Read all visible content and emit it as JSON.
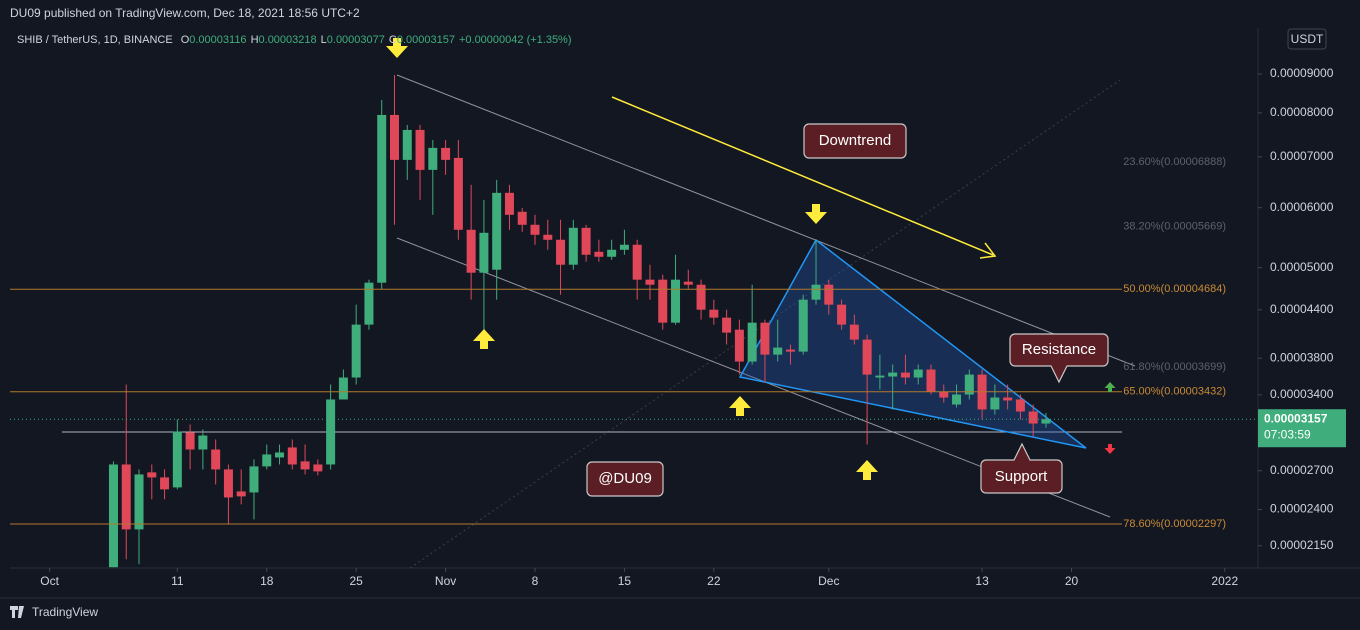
{
  "header": {
    "publisher": "DU09 published on TradingView.com, Dec 18, 2021 18:56 UTC+2",
    "footer": "TradingView"
  },
  "chart_data": {
    "type": "candlestick",
    "legend": {
      "symbol": "SHIB / TetherUS, 1D, BINANCE",
      "items": [
        {
          "key": "O",
          "value": "0.00003116"
        },
        {
          "key": "H",
          "value": "0.00003218"
        },
        {
          "key": "L",
          "value": "0.00003077"
        },
        {
          "key": "C",
          "value": "0.00003157"
        }
      ],
      "change": "+0.00000042 (+1.35%)"
    },
    "currency": "USDT",
    "price_label": "0.00003157",
    "countdown": "07:03:59",
    "log_scale": true,
    "grid": false,
    "up_color": "#3fae7c",
    "down_color": "#e0485a",
    "x": [
      5,
      6,
      7,
      8,
      9,
      10,
      11,
      12,
      13,
      14,
      15,
      16,
      17,
      18,
      19,
      20,
      21,
      22,
      23,
      24,
      25,
      26,
      27,
      28,
      29,
      30,
      31,
      32,
      33,
      34,
      35,
      36,
      37,
      38,
      39,
      40,
      41,
      42,
      43,
      44,
      45,
      46,
      47,
      48,
      49,
      50,
      51,
      52,
      53,
      54,
      55,
      56,
      57,
      58,
      59,
      60,
      61,
      62,
      63,
      64,
      65,
      66,
      67,
      68,
      69,
      70,
      71,
      72,
      73,
      74,
      75,
      76,
      77,
      78
    ],
    "open": [
      2.015e-05,
      2.752e-05,
      2.26e-05,
      2.687e-05,
      2.646e-05,
      2.567e-05,
      3.033e-05,
      2.88e-05,
      2.88e-05,
      2.711e-05,
      2.536e-05,
      2.528e-05,
      2.736e-05,
      2.811e-05,
      2.898e-05,
      2.778e-05,
      2.752e-05,
      2.752e-05,
      3.352e-05,
      3.583e-05,
      4.207e-05,
      4.778e-05,
      7.949e-05,
      6.936e-05,
      7.596e-05,
      6.729e-05,
      7.193e-05,
      6.978e-05,
      5.61e-05,
      4.925e-05,
      4.97e-05,
      6.276e-05,
      5.925e-05,
      5.696e-05,
      5.526e-05,
      5.443e-05,
      5.046e-05,
      5.644e-05,
      5.248e-05,
      5.169e-05,
      5.28e-05,
      5.361e-05,
      4.822e-05,
      4.822e-05,
      4.232e-05,
      4.793e-05,
      4.749e-05,
      4.402e-05,
      4.297e-05,
      4.143e-05,
      3.761e-05,
      4.232e-05,
      3.841e-05,
      3.9e-05,
      3.876e-05,
      4.538e-05,
      4.749e-05,
      4.47e-05,
      4.207e-05,
      4.02e-05,
      3.583e-05,
      3.594e-05,
      3.637e-05,
      3.583e-05,
      3.671e-05,
      3.434e-05,
      3.301e-05,
      3.403e-05,
      3.615e-05,
      3.252e-05,
      3.372e-05,
      3.352e-05,
      3.232e-05,
      3.116e-05
    ],
    "high": [
      2.778e-05,
      3.508e-05,
      2.711e-05,
      2.752e-05,
      2.711e-05,
      3.155e-05,
      3.107e-05,
      3.06e-05,
      2.969e-05,
      2.752e-05,
      2.711e-05,
      2.794e-05,
      2.924e-05,
      2.924e-05,
      2.969e-05,
      2.924e-05,
      2.794e-05,
      3.508e-05,
      3.671e-05,
      4.47e-05,
      4.822e-05,
      8.32e-05,
      8.974e-05,
      7.712e-05,
      7.712e-05,
      7.369e-05,
      7.369e-05,
      7.369e-05,
      6.43e-05,
      6.144e-05,
      6.528e-05,
      6.43e-05,
      5.997e-05,
      5.871e-05,
      5.783e-05,
      5.783e-05,
      5.783e-05,
      5.696e-05,
      5.443e-05,
      5.443e-05,
      5.61e-05,
      5.443e-05,
      5.046e-05,
      4.895e-05,
      5.201e-05,
      4.97e-05,
      4.822e-05,
      4.538e-05,
      4.402e-05,
      4.271e-05,
      4.749e-05,
      4.271e-05,
      4.271e-05,
      3.96e-05,
      4.607e-05,
      5.443e-05,
      4.822e-05,
      4.538e-05,
      4.336e-05,
      4.081e-05,
      3.841e-05,
      3.727e-05,
      3.841e-05,
      3.727e-05,
      3.727e-05,
      3.508e-05,
      3.508e-05,
      3.671e-05,
      3.671e-05,
      3.508e-05,
      3.508e-05,
      3.403e-05,
      3.301e-05,
      3.218e-05
    ],
    "low": [
      2.015e-05,
      2.064e-05,
      2.033e-05,
      2.476e-05,
      2.476e-05,
      2.552e-05,
      2.711e-05,
      2.711e-05,
      2.59e-05,
      2.295e-05,
      2.438e-05,
      2.33e-05,
      2.711e-05,
      2.752e-05,
      2.711e-05,
      2.67e-05,
      2.662e-05,
      2.711e-05,
      3.352e-05,
      3.508e-05,
      4.143e-05,
      4.678e-05,
      5.696e-05,
      6.528e-05,
      6.144e-05,
      5.871e-05,
      6.628e-05,
      5.443e-05,
      4.538e-05,
      4.143e-05,
      4.538e-05,
      5.61e-05,
      5.576e-05,
      5.361e-05,
      5.28e-05,
      4.607e-05,
      4.97e-05,
      5.092e-05,
      5.092e-05,
      5.122e-05,
      5.201e-05,
      4.538e-05,
      4.538e-05,
      4.143e-05,
      4.207e-05,
      4.678e-05,
      4.271e-05,
      4.207e-05,
      3.96e-05,
      3.615e-05,
      3.727e-05,
      3.529e-05,
      3.761e-05,
      3.727e-05,
      3.841e-05,
      4.47e-05,
      4.336e-05,
      4.143e-05,
      3.96e-05,
      2.924e-05,
      3.455e-05,
      3.252e-05,
      3.508e-05,
      3.508e-05,
      3.403e-05,
      3.321e-05,
      3.271e-05,
      3.352e-05,
      3.155e-05,
      3.203e-05,
      3.252e-05,
      3.155e-05,
      2.996e-05,
      3.077e-05
    ],
    "close": [
      2.752e-05,
      2.26e-05,
      2.67e-05,
      2.646e-05,
      2.552e-05,
      3.042e-05,
      2.88e-05,
      3.005e-05,
      2.711e-05,
      2.49e-05,
      2.498e-05,
      2.736e-05,
      2.837e-05,
      2.854e-05,
      2.752e-05,
      2.711e-05,
      2.695e-05,
      3.352e-05,
      3.583e-05,
      4.207e-05,
      4.778e-05,
      7.949e-05,
      6.936e-05,
      7.596e-05,
      6.729e-05,
      7.193e-05,
      6.936e-05,
      5.61e-05,
      4.925e-05,
      5.559e-05,
      6.276e-05,
      5.871e-05,
      5.696e-05,
      5.526e-05,
      5.443e-05,
      5.046e-05,
      5.644e-05,
      5.201e-05,
      5.169e-05,
      5.28e-05,
      5.361e-05,
      4.822e-05,
      4.749e-05,
      4.232e-05,
      4.822e-05,
      4.749e-05,
      4.402e-05,
      4.297e-05,
      4.106e-05,
      3.761e-05,
      4.232e-05,
      3.841e-05,
      3.924e-05,
      3.876e-05,
      4.538e-05,
      4.749e-05,
      4.47e-05,
      4.207e-05,
      4.02e-05,
      3.615e-05,
      3.604e-05,
      3.637e-05,
      3.583e-05,
      3.671e-05,
      3.434e-05,
      3.372e-05,
      3.403e-05,
      3.615e-05,
      3.252e-05,
      3.372e-05,
      3.342e-05,
      3.232e-05,
      3.116e-05,
      3.157e-05
    ],
    "xlim": [
      -3.1,
      94.6
    ],
    "xticks": [
      {
        "value": 0,
        "label": "Oct"
      },
      {
        "value": 10,
        "label": "11"
      },
      {
        "value": 17,
        "label": "18"
      },
      {
        "value": 24,
        "label": "25"
      },
      {
        "value": 31,
        "label": "Nov"
      },
      {
        "value": 38,
        "label": "8"
      },
      {
        "value": 45,
        "label": "15"
      },
      {
        "value": 52,
        "label": "22"
      },
      {
        "value": 61,
        "label": "Dec"
      },
      {
        "value": 73,
        "label": "13"
      },
      {
        "value": 80,
        "label": "20"
      },
      {
        "value": 92,
        "label": "2022"
      }
    ],
    "ylim": [
      2.01e-05,
      0.0001035
    ],
    "yticks": [
      {
        "value": 9e-05,
        "label": "0.00009000"
      },
      {
        "value": 8e-05,
        "label": "0.00008000"
      },
      {
        "value": 7e-05,
        "label": "0.00007000"
      },
      {
        "value": 6e-05,
        "label": "0.00006000"
      },
      {
        "value": 5e-05,
        "label": "0.00005000"
      },
      {
        "value": 4.4e-05,
        "label": "0.00004400"
      },
      {
        "value": 3.8e-05,
        "label": "0.00003800"
      },
      {
        "value": 3.4e-05,
        "label": "0.00003400"
      },
      {
        "value": 2.7e-05,
        "label": "0.00002700"
      },
      {
        "value": 2.4e-05,
        "label": "0.00002400"
      },
      {
        "value": 2.15e-05,
        "label": "0.00002150"
      }
    ],
    "fib_levels": [
      {
        "value": 6.888e-05,
        "label": "23.60%(0.00006888)",
        "line": false
      },
      {
        "value": 5.669e-05,
        "label": "38.20%(0.00005669)",
        "line": false
      },
      {
        "value": 4.684e-05,
        "label": "50.00%(0.00004684)",
        "line": true
      },
      {
        "value": 3.699e-05,
        "label": "61.80%(0.00003699)",
        "line": false
      },
      {
        "value": 3.432e-05,
        "label": "65.00%(0.00003432)",
        "line": true
      },
      {
        "value": 2.297e-05,
        "label": "78.60%(0.00002297)",
        "line": true
      }
    ],
    "annotations": {
      "downtrend": "Downtrend",
      "resistance": "Resistance",
      "support": "Support",
      "author": "@DU09"
    }
  }
}
